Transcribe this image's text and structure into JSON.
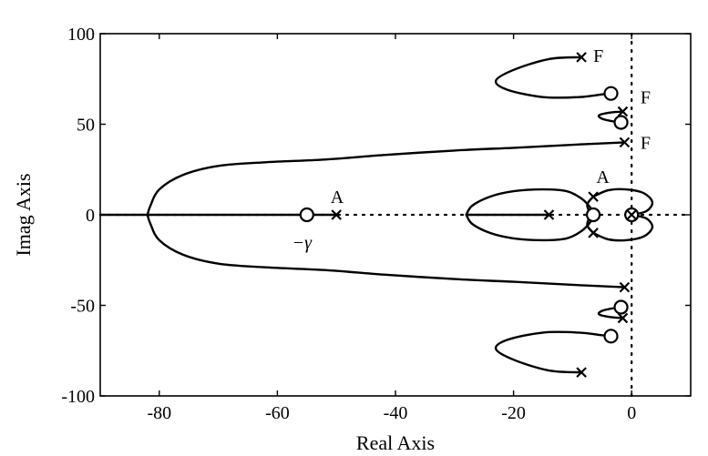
{
  "chart_data": {
    "type": "root-locus",
    "xlabel": "Real Axis",
    "ylabel": "Imag Axis",
    "xlim": [
      -90,
      10
    ],
    "ylim": [
      -100,
      100
    ],
    "xticks": [
      {
        "value": -80,
        "label": "-80"
      },
      {
        "value": -60,
        "label": "-60"
      },
      {
        "value": -40,
        "label": "-40"
      },
      {
        "value": -20,
        "label": "-20"
      },
      {
        "value": 0,
        "label": "0"
      }
    ],
    "yticks": [
      {
        "value": 100,
        "label": "100"
      },
      {
        "value": 50,
        "label": "50"
      },
      {
        "value": 0,
        "label": "0"
      },
      {
        "value": -50,
        "label": "-50"
      },
      {
        "value": -100,
        "label": "-100"
      }
    ],
    "poles": [
      {
        "x": -8.5,
        "y": 87
      },
      {
        "x": -1.5,
        "y": 57
      },
      {
        "x": -1.2,
        "y": 40
      },
      {
        "x": -50,
        "y": 0
      },
      {
        "x": -14,
        "y": 0
      },
      {
        "x": -6.5,
        "y": 10
      },
      {
        "x": -6.5,
        "y": -10
      },
      {
        "x": -1.2,
        "y": -40
      },
      {
        "x": -1.5,
        "y": -57
      },
      {
        "x": -8.5,
        "y": -87
      }
    ],
    "zeros": [
      {
        "x": -3.5,
        "y": 67
      },
      {
        "x": -1.8,
        "y": 51
      },
      {
        "x": -55,
        "y": 0
      },
      {
        "x": -6.5,
        "y": 0
      },
      {
        "x": 0,
        "y": 0
      },
      {
        "x": -1.8,
        "y": -51
      },
      {
        "x": -3.5,
        "y": -67
      }
    ],
    "branches": [
      [
        [
          -8.5,
          87
        ],
        [
          -14,
          86
        ],
        [
          -20,
          80
        ],
        [
          -23,
          74
        ],
        [
          -21,
          69
        ],
        [
          -15,
          65
        ],
        [
          -9,
          65
        ],
        [
          -5,
          66.5
        ],
        [
          -3.5,
          67
        ]
      ],
      [
        [
          -1.5,
          57
        ],
        [
          -3.5,
          56.5
        ],
        [
          -5.5,
          55
        ],
        [
          -5,
          53
        ],
        [
          -3,
          51.5
        ],
        [
          -1.8,
          51
        ]
      ],
      [
        [
          -1.2,
          40
        ],
        [
          -8,
          39
        ],
        [
          -20,
          37
        ],
        [
          -30,
          35.5
        ],
        [
          -42,
          33
        ],
        [
          -52,
          30.5
        ],
        [
          -62,
          29
        ],
        [
          -70,
          27
        ],
        [
          -76,
          22
        ],
        [
          -80,
          14
        ],
        [
          -81.5,
          5
        ],
        [
          -82,
          0
        ]
      ],
      [
        [
          -1.2,
          -40
        ],
        [
          -8,
          -39
        ],
        [
          -20,
          -37
        ],
        [
          -30,
          -35.5
        ],
        [
          -42,
          -33
        ],
        [
          -52,
          -30.5
        ],
        [
          -62,
          -29
        ],
        [
          -70,
          -27
        ],
        [
          -76,
          -22
        ],
        [
          -80,
          -14
        ],
        [
          -81.5,
          -5
        ],
        [
          -82,
          0
        ]
      ],
      [
        [
          -1.5,
          -57
        ],
        [
          -3.5,
          -56.5
        ],
        [
          -5.5,
          -55
        ],
        [
          -5,
          -53
        ],
        [
          -3,
          -51.5
        ],
        [
          -1.8,
          -51
        ]
      ],
      [
        [
          -8.5,
          -87
        ],
        [
          -14,
          -86
        ],
        [
          -20,
          -80
        ],
        [
          -23,
          -74
        ],
        [
          -21,
          -69
        ],
        [
          -15,
          -65
        ],
        [
          -9,
          -65
        ],
        [
          -5,
          -66.5
        ],
        [
          -3.5,
          -67
        ]
      ],
      [
        [
          -90,
          0
        ],
        [
          -55,
          0
        ]
      ],
      [
        [
          -50,
          0
        ],
        [
          -56,
          0
        ]
      ],
      [
        [
          -14,
          0
        ],
        [
          -23,
          0
        ],
        [
          -28,
          0
        ]
      ],
      [
        [
          -28,
          0
        ],
        [
          -27,
          5
        ],
        [
          -24,
          10
        ],
        [
          -20,
          13
        ],
        [
          -15,
          14
        ],
        [
          -11,
          13
        ],
        [
          -8.5,
          9
        ],
        [
          -7,
          4
        ],
        [
          -6.5,
          0
        ]
      ],
      [
        [
          -28,
          0
        ],
        [
          -27,
          -5
        ],
        [
          -24,
          -10
        ],
        [
          -20,
          -13
        ],
        [
          -15,
          -14
        ],
        [
          -11,
          -13
        ],
        [
          -8.5,
          -9
        ],
        [
          -7,
          -4
        ],
        [
          -6.5,
          0
        ]
      ],
      [
        [
          -6.5,
          10
        ],
        [
          -4,
          13.5
        ],
        [
          -1,
          14
        ],
        [
          2,
          12
        ],
        [
          3.5,
          7
        ],
        [
          2.5,
          2
        ],
        [
          0,
          0
        ]
      ],
      [
        [
          -6.5,
          10
        ],
        [
          -7.5,
          6
        ],
        [
          -7.2,
          2
        ],
        [
          -6.5,
          0
        ]
      ],
      [
        [
          -6.5,
          -10
        ],
        [
          -4,
          -13.5
        ],
        [
          -1,
          -14
        ],
        [
          2,
          -12
        ],
        [
          3.5,
          -7
        ],
        [
          2.5,
          -2
        ],
        [
          0,
          0
        ]
      ],
      [
        [
          -6.5,
          -10
        ],
        [
          -7.5,
          -6
        ],
        [
          -7.2,
          -2
        ],
        [
          -6.5,
          0
        ]
      ]
    ],
    "reference_lines": [
      {
        "axis": "x",
        "value": 0
      },
      {
        "axis": "y",
        "value": 0
      }
    ],
    "annotations": [
      {
        "text": "F",
        "x": -6.5,
        "y": 88
      },
      {
        "text": "F",
        "x": 1.5,
        "y": 65
      },
      {
        "text": "F",
        "x": 1.5,
        "y": 40
      },
      {
        "text": "A",
        "x": -51,
        "y": 10
      },
      {
        "text": "A",
        "x": -6,
        "y": 21
      },
      {
        "text": "−γ",
        "x": -57.5,
        "y": -15,
        "italic": true
      }
    ],
    "grid": false
  }
}
